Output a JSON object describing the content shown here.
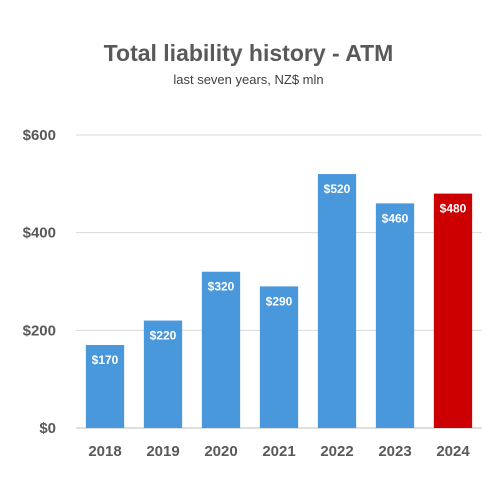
{
  "chart_data": {
    "type": "bar",
    "title": "Total liability history - ATM",
    "subtitle": "last seven years, NZ$ mln",
    "categories": [
      "2018",
      "2019",
      "2020",
      "2021",
      "2022",
      "2023",
      "2024"
    ],
    "values": [
      170,
      220,
      320,
      290,
      520,
      460,
      480
    ],
    "value_labels": [
      "$170",
      "$220",
      "$320",
      "$290",
      "$520",
      "$460",
      "$480"
    ],
    "ylim": [
      0,
      600
    ],
    "y_ticks": [
      0,
      200,
      400,
      600
    ],
    "y_tick_labels": [
      "$0",
      "$200",
      "$400",
      "$600"
    ],
    "grid": true,
    "colors": {
      "bar": "#4a98dc",
      "highlight": "#cc0000",
      "grid": "#d9d9d9",
      "axis": "#bfbfbf"
    },
    "highlight_category": "2024"
  }
}
